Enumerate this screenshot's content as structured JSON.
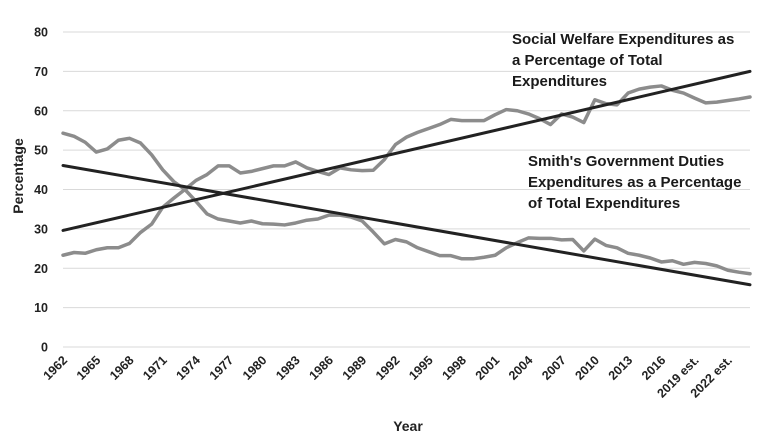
{
  "chart_data": {
    "type": "line",
    "xlabel": "Year",
    "ylabel": "Percentage",
    "ylim": [
      0,
      80
    ],
    "yticks": [
      0,
      10,
      20,
      30,
      40,
      50,
      60,
      70,
      80
    ],
    "grid": "horizontal",
    "x": [
      1962,
      1963,
      1964,
      1965,
      1966,
      1967,
      1968,
      1969,
      1970,
      1971,
      1972,
      1973,
      1974,
      1975,
      1976,
      1977,
      1978,
      1979,
      1980,
      1981,
      1982,
      1983,
      1984,
      1985,
      1986,
      1987,
      1988,
      1989,
      1990,
      1991,
      1992,
      1993,
      1994,
      1995,
      1996,
      1997,
      1998,
      1999,
      2000,
      2001,
      2002,
      2003,
      2004,
      2005,
      2006,
      2007,
      2008,
      2009,
      2010,
      2011,
      2012,
      2013,
      2014,
      2015,
      2016,
      2017,
      2018,
      2019,
      2020,
      2021,
      2022,
      2023,
      2024
    ],
    "xtick_labels": [
      "1962",
      "1965",
      "1968",
      "1971",
      "1974",
      "1977",
      "1980",
      "1983",
      "1986",
      "1989",
      "1992",
      "1995",
      "1998",
      "2001",
      "2004",
      "2007",
      "2010",
      "2013",
      "2016",
      "2019 est.",
      "2022 est."
    ],
    "series": [
      {
        "kind": "data",
        "color": "#8c8c8c",
        "values": [
          54.3,
          53.5,
          52.0,
          49.5,
          50.3,
          52.5,
          53.0,
          51.8,
          48.8,
          45.0,
          42.0,
          40.0,
          37.0,
          33.8,
          32.5,
          32.0,
          31.5,
          32.0,
          31.3,
          31.2,
          31.0,
          31.5,
          32.2,
          32.5,
          33.5,
          33.5,
          33.0,
          32.0,
          29.2,
          26.2,
          27.3,
          26.7,
          25.2,
          24.2,
          23.2,
          23.2,
          22.4,
          22.4,
          22.8,
          23.3,
          25.2,
          26.5,
          27.7,
          27.6,
          27.6,
          27.2,
          27.3,
          24.4,
          27.4,
          25.8,
          25.2,
          23.8,
          23.3,
          22.6,
          21.6,
          21.9,
          21.0,
          21.5,
          21.2,
          20.6,
          19.5,
          19.0,
          18.6
        ]
      },
      {
        "kind": "data",
        "color": "#8c8c8c",
        "values": [
          23.3,
          24.0,
          23.8,
          24.7,
          25.2,
          25.2,
          26.3,
          29.1,
          31.2,
          35.5,
          37.8,
          40.0,
          42.3,
          43.8,
          46.0,
          46.0,
          44.2,
          44.6,
          45.3,
          46.0,
          46.0,
          47.0,
          45.5,
          44.6,
          43.8,
          45.5,
          45.0,
          44.8,
          44.9,
          47.6,
          51.4,
          53.3,
          54.5,
          55.5,
          56.5,
          57.8,
          57.5,
          57.5,
          57.5,
          59.0,
          60.3,
          60.0,
          59.2,
          58.0,
          56.5,
          59.2,
          58.4,
          57.0,
          62.8,
          61.8,
          61.5,
          64.5,
          65.5,
          66.0,
          66.3,
          65.2,
          64.5,
          63.2,
          62.0,
          62.2,
          62.6,
          63.0,
          63.5
        ]
      },
      {
        "kind": "trend",
        "color": "#222222",
        "x": [
          1962,
          2024
        ],
        "values": [
          29.6,
          70.0
        ]
      },
      {
        "kind": "trend",
        "color": "#222222",
        "x": [
          1962,
          2024
        ],
        "values": [
          46.1,
          15.8
        ]
      }
    ],
    "annotations": [
      {
        "lines": [
          "Social Welfare Expenditures as",
          "a Percentage of Total",
          "Expenditures"
        ]
      },
      {
        "lines": [
          "Smith's Government Duties",
          "Expenditures as a Percentage",
          "of Total Expenditures"
        ]
      }
    ]
  }
}
